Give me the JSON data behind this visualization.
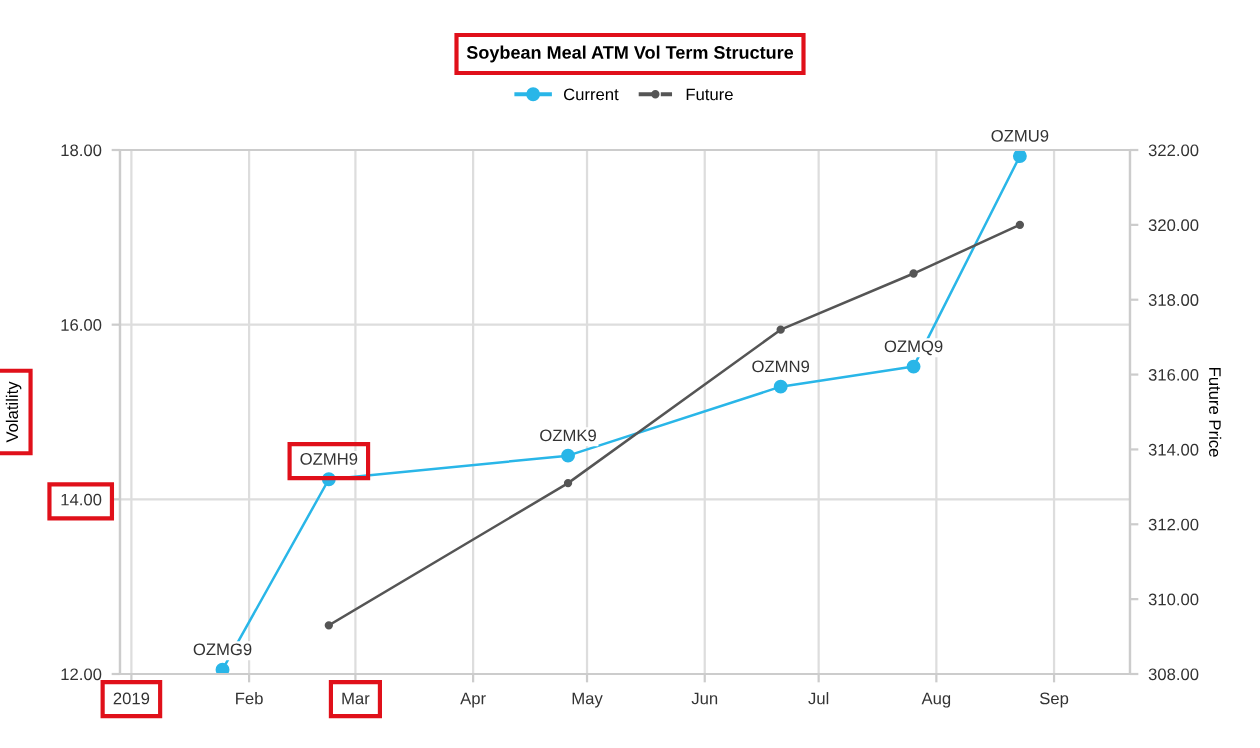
{
  "chart_data": {
    "type": "line",
    "title": "Soybean Meal ATM Vol Term Structure",
    "ylabel": "Volatility",
    "y2label": "Future Price",
    "series": [
      {
        "name": "Current",
        "color": "#29b6e8",
        "marker": "circle",
        "x": [
          "2019-01-25",
          "2019-02-22",
          "2019-04-26",
          "2019-06-21",
          "2019-07-26",
          "2019-08-23"
        ],
        "values": [
          12.05,
          14.23,
          14.5,
          15.29,
          15.52,
          17.93
        ]
      },
      {
        "name": "Future",
        "color": "#555555",
        "axis": "y2",
        "marker": "circle",
        "x": [
          "2019-02-22",
          "2019-04-26",
          "2019-06-21",
          "2019-07-26",
          "2019-08-23"
        ],
        "values": [
          309.3,
          313.1,
          317.2,
          318.7,
          320.0
        ]
      }
    ],
    "annotations": [
      {
        "text": "OZMG9",
        "x": "2019-01-25",
        "y": 12.05
      },
      {
        "text": "OZMH9",
        "x": "2019-02-22",
        "y": 14.23
      },
      {
        "text": "OZMK9",
        "x": "2019-04-26",
        "y": 14.5
      },
      {
        "text": "OZMN9",
        "x": "2019-06-21",
        "y": 15.29
      },
      {
        "text": "OZMQ9",
        "x": "2019-07-26",
        "y": 15.52
      },
      {
        "text": "OZMU9",
        "x": "2019-08-23",
        "y": 17.93
      }
    ],
    "xlim": [
      "2018-12-29",
      "2019-09-21"
    ],
    "xticks": [
      {
        "value": "2019-01-01",
        "label": "2019"
      },
      {
        "value": "2019-02-01",
        "label": "Feb"
      },
      {
        "value": "2019-03-01",
        "label": "Mar"
      },
      {
        "value": "2019-04-01",
        "label": "Apr"
      },
      {
        "value": "2019-05-01",
        "label": "May"
      },
      {
        "value": "2019-06-01",
        "label": "Jun"
      },
      {
        "value": "2019-07-01",
        "label": "Jul"
      },
      {
        "value": "2019-08-01",
        "label": "Aug"
      },
      {
        "value": "2019-09-01",
        "label": "Sep"
      }
    ],
    "ylim": [
      12,
      18
    ],
    "yticks": [
      {
        "value": 12,
        "label": "12.00"
      },
      {
        "value": 14,
        "label": "14.00"
      },
      {
        "value": 16,
        "label": "16.00"
      },
      {
        "value": 18,
        "label": "18.00"
      }
    ],
    "y2lim": [
      308,
      322
    ],
    "y2ticks": [
      {
        "value": 308,
        "label": "308.00"
      },
      {
        "value": 310,
        "label": "310.00"
      },
      {
        "value": 312,
        "label": "312.00"
      },
      {
        "value": 314,
        "label": "314.00"
      },
      {
        "value": 316,
        "label": "316.00"
      },
      {
        "value": 318,
        "label": "318.00"
      },
      {
        "value": 320,
        "label": "320.00"
      },
      {
        "value": 322,
        "label": "322.00"
      }
    ],
    "grid": true,
    "legend": "top"
  }
}
